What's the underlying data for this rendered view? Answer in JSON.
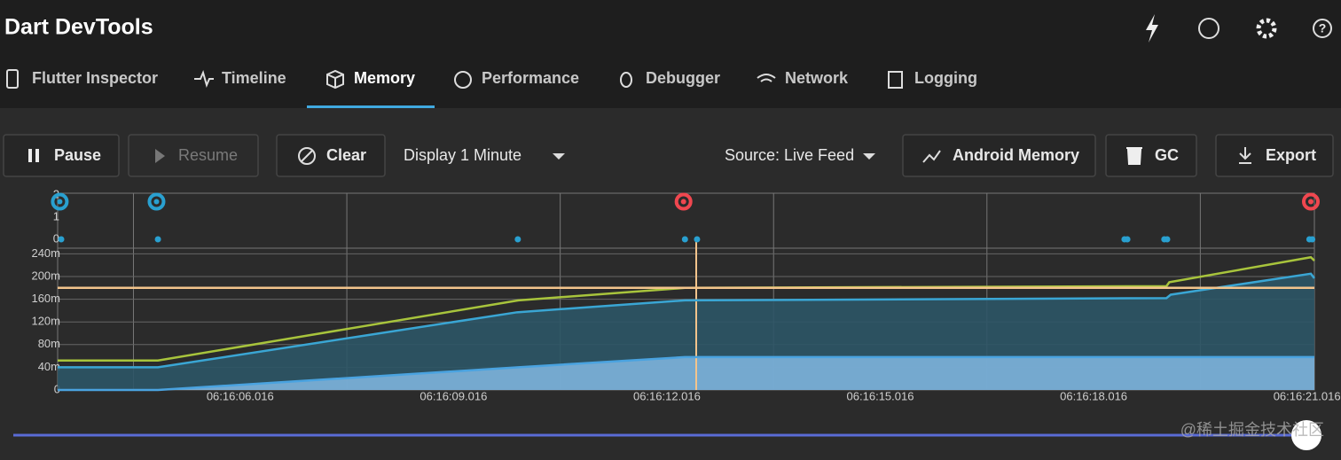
{
  "header": {
    "title": "Dart DevTools"
  },
  "tabs": [
    "Flutter Inspector",
    "Timeline",
    "Memory",
    "Performance",
    "Debugger",
    "Network",
    "Logging"
  ],
  "toolbar": {
    "pause": "Pause",
    "resume": "Resume",
    "clear": "Clear",
    "display": "Display 1 Minute",
    "source": "Source: Live Feed",
    "android_memory": "Android Memory",
    "gc": "GC",
    "export": "Export"
  },
  "chart_data": {
    "type": "line",
    "xlim": [
      3.45,
      21.12
    ],
    "xticks": [
      {
        "value": 6.016,
        "label": "06:16:06.016"
      },
      {
        "value": 9.016,
        "label": "06:16:09.016"
      },
      {
        "value": 12.016,
        "label": "06:16:12.016"
      },
      {
        "value": 15.016,
        "label": "06:16:15.016"
      },
      {
        "value": 18.016,
        "label": "06:16:18.016"
      },
      {
        "value": 21.016,
        "label": "06:16:21.016"
      }
    ],
    "xgrid": [
      4.516,
      7.516,
      10.516,
      13.516,
      16.516,
      19.516
    ],
    "ylim": [
      0,
      250
    ],
    "yticks": [
      0,
      {
        "value": 40,
        "label": "40m"
      },
      {
        "value": 80,
        "label": "80m"
      },
      {
        "value": 120,
        "label": "120m"
      },
      {
        "value": 160,
        "label": "160m"
      },
      {
        "value": 200,
        "label": "200m"
      },
      {
        "value": 240,
        "label": "240m"
      }
    ],
    "grid": true,
    "series": [
      {
        "color": "#3aa6d4",
        "fill": "#2c5566",
        "x": [
          3.45,
          4.86,
          9.91,
          12.27,
          19.04,
          19.1,
          21.07,
          21.12
        ],
        "values": [
          40,
          40,
          137,
          158,
          162,
          168,
          205,
          197
        ]
      },
      {
        "color": "#4aa3e0",
        "fill": "#7db3dc",
        "x": [
          3.45,
          4.86,
          9.93,
          12.27,
          21.12
        ],
        "values": [
          0,
          0,
          40,
          58,
          58
        ]
      },
      {
        "color": "#a8c43c",
        "x": [
          3.45,
          4.86,
          9.93,
          12.27,
          19.04,
          19.08,
          21.07,
          21.12
        ],
        "values": [
          52,
          52,
          158,
          180,
          183,
          190,
          234,
          228
        ]
      },
      {
        "color": "#f3c48c",
        "x": [
          3.45,
          21.12
        ],
        "values": [
          180,
          180
        ]
      }
    ],
    "events": {
      "ylim": [
        0,
        2
      ],
      "yticks": [
        0,
        1,
        2
      ],
      "dots": {
        "color": "#29a0d0",
        "x": [
          3.5,
          4.86,
          9.92,
          12.27,
          12.44,
          18.45,
          18.49,
          19.01,
          19.05,
          21.05,
          21.09
        ],
        "values": [
          0,
          0,
          0,
          0,
          0,
          0,
          0,
          0,
          0,
          0,
          0
        ]
      },
      "markers": [
        {
          "color": "#29a0d0",
          "x": [
            3.48,
            4.84
          ],
          "values": [
            1.7,
            1.7
          ]
        },
        {
          "color": "#f0474f",
          "x": [
            12.25,
            21.07
          ],
          "values": [
            1.7,
            1.7
          ]
        }
      ]
    }
  },
  "watermark": "@稀土掘金技术社区"
}
